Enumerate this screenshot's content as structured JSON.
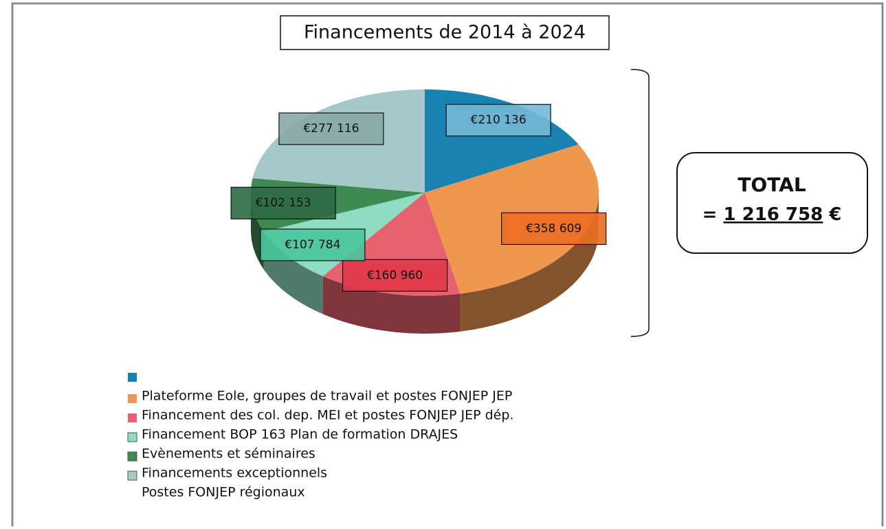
{
  "chart_data": {
    "type": "pie3d",
    "title": "Financements de 2014 à 2024",
    "categories": [
      null,
      "Plateforme Eole, groupes de travail et postes FONJEP JEP",
      "Financement des col. dep. MEI et postes FONJEP JEP dép.",
      "Financement BOP 163 Plan de formation DRAJES",
      "Evènements et séminaires",
      "Financements exceptionnels"
    ],
    "legend_extra": "Postes FONJEP régionaux",
    "values": [
      210136,
      358609,
      160960,
      107784,
      102153,
      277116
    ],
    "value_labels": [
      "€210 136",
      "€358 609",
      "€160 960",
      "€107 784",
      "€102 153",
      "€277 116"
    ],
    "colors": [
      "#1a82b0",
      "#f0974f",
      "#e8616e",
      "#8edcc4",
      "#3d8a52",
      "#a6c8c8"
    ],
    "label_colors": [
      "#74b8d6",
      "#ec6e24",
      "#e03a48",
      "#4ac49f",
      "#2e6a42",
      "#8aa8a8"
    ],
    "total": {
      "title": "TOTAL",
      "prefix": "=",
      "amount": "1 216 758",
      "unit": "€"
    }
  }
}
